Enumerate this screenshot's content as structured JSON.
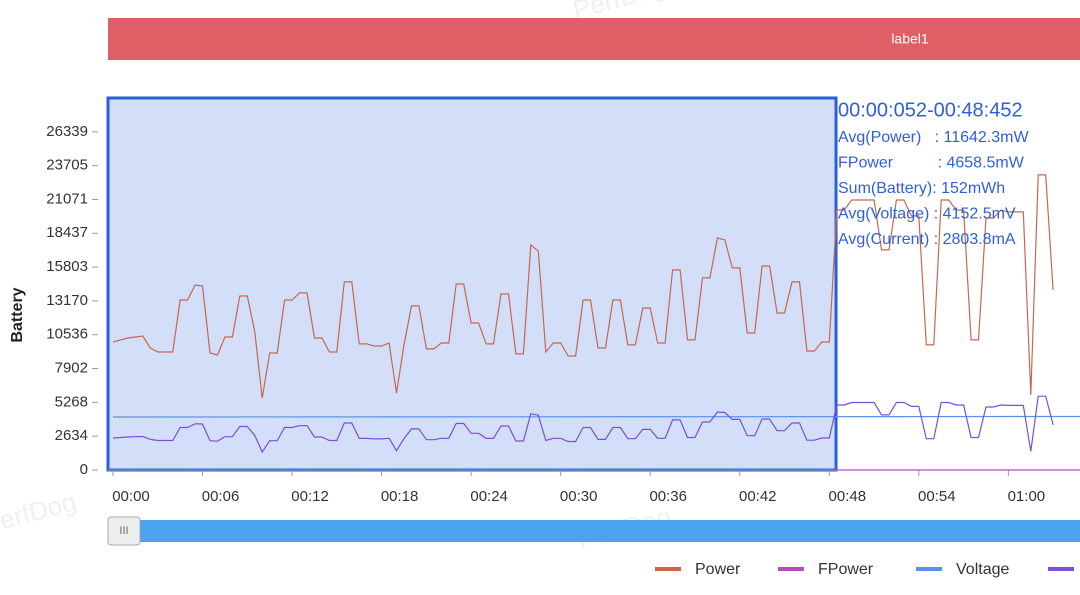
{
  "chart_data": {
    "type": "line",
    "header": "label1",
    "y_label": "Battery",
    "watermarks": [
      "PerfDog",
      "PerfDog",
      "PerfDog"
    ],
    "x": [
      0,
      0.5,
      1,
      1.5,
      2,
      2.5,
      3,
      3.5,
      4,
      4.5,
      5,
      5.5,
      6,
      6.5,
      7,
      7.5,
      8,
      8.5,
      9,
      9.5,
      10,
      10.5,
      11,
      11.5,
      12,
      12.5,
      13,
      13.5,
      14,
      14.5,
      15,
      15.5,
      16,
      16.5,
      17,
      17.5,
      18,
      18.5,
      19,
      19.5,
      20,
      20.5,
      21,
      21.5,
      22,
      22.5,
      23,
      23.5,
      24,
      24.5,
      25,
      25.5,
      26,
      26.5,
      27,
      27.5,
      28,
      28.5,
      29,
      29.5,
      30,
      30.5,
      31,
      31.5,
      32,
      32.5,
      33,
      33.5,
      34,
      34.5,
      35,
      35.5,
      36,
      36.5,
      37,
      37.5,
      38,
      38.5,
      39,
      39.5,
      40,
      40.5,
      41,
      41.5,
      42,
      42.5,
      43,
      43.5,
      44,
      44.5,
      45,
      45.5,
      46,
      46.5,
      47,
      47.5,
      48,
      48.5,
      49,
      49.5,
      50,
      50.5,
      51,
      51.5,
      52,
      52.5,
      53,
      53.5,
      54,
      54.5,
      55,
      55.5,
      56,
      56.5,
      57,
      57.5,
      58,
      58.5,
      59,
      59.5,
      60,
      60.5,
      61,
      61.5,
      62,
      62.5,
      63
    ],
    "series": [
      {
        "name": "Power",
        "color": "#c8674f",
        "values": [
          9970,
          10130,
          10280,
          10360,
          10440,
          9500,
          9190,
          9190,
          9190,
          13240,
          13240,
          14410,
          14330,
          9110,
          8960,
          10360,
          10360,
          13550,
          13550,
          10750,
          5610,
          9110,
          9110,
          13240,
          13240,
          13790,
          13790,
          10280,
          10280,
          9190,
          9190,
          14650,
          14650,
          9820,
          9820,
          9660,
          9660,
          9890,
          6000,
          9740,
          12780,
          12780,
          9430,
          9430,
          9890,
          9890,
          14490,
          14490,
          11450,
          11450,
          9820,
          9820,
          13710,
          13710,
          9040,
          9040,
          17530,
          17060,
          9190,
          9890,
          9890,
          8880,
          8880,
          13240,
          13240,
          9500,
          9500,
          13240,
          13240,
          9740,
          9740,
          12620,
          12620,
          9890,
          9890,
          15580,
          15580,
          10130,
          10130,
          14960,
          14960,
          18070,
          17920,
          15740,
          15740,
          10670,
          10670,
          15890,
          15890,
          12230,
          12230,
          14650,
          14650,
          9270,
          9270,
          9970,
          9970,
          20250,
          20250,
          21030,
          21030,
          21030,
          21030,
          17140,
          17140,
          21030,
          21030,
          19790,
          19790,
          9740,
          9740,
          21030,
          21030,
          20250,
          20250,
          10130,
          10130,
          19630,
          19630,
          20250,
          20100,
          20100,
          20100,
          5840,
          22980,
          22980,
          14020
        ]
      },
      {
        "name": "FPower",
        "color": "#b44bbf",
        "x": [
          48.5,
          64.8
        ],
        "values": [
          0,
          0
        ]
      },
      {
        "name": "Voltage",
        "color": "#5b8fe8",
        "x": [
          0,
          64.8
        ],
        "values": [
          4130,
          4170
        ]
      },
      {
        "color": "#7b4fd6",
        "values": [
          2490,
          2530,
          2570,
          2590,
          2610,
          2380,
          2300,
          2300,
          2300,
          3310,
          3310,
          3600,
          3580,
          2280,
          2240,
          2590,
          2590,
          3390,
          3390,
          2690,
          1400,
          2280,
          2280,
          3310,
          3310,
          3450,
          3450,
          2570,
          2570,
          2300,
          2300,
          3660,
          3660,
          2460,
          2460,
          2420,
          2420,
          2470,
          1500,
          2440,
          3200,
          3200,
          2360,
          2360,
          2470,
          2470,
          3620,
          3620,
          2860,
          2860,
          2460,
          2460,
          3430,
          3430,
          2260,
          2260,
          4380,
          4270,
          2300,
          2470,
          2470,
          2220,
          2220,
          3310,
          3310,
          2380,
          2380,
          3310,
          3310,
          2440,
          2440,
          3160,
          3160,
          2470,
          2470,
          3900,
          3900,
          2530,
          2530,
          3740,
          3740,
          4520,
          4480,
          3940,
          3940,
          2670,
          2670,
          3970,
          3970,
          3060,
          3060,
          3660,
          3660,
          2320,
          2320,
          2490,
          2490,
          5060,
          5060,
          5260,
          5260,
          5260,
          5260,
          4290,
          4290,
          5260,
          5260,
          4950,
          4950,
          2440,
          2440,
          5260,
          5260,
          5060,
          5060,
          2530,
          2530,
          4910,
          4910,
          5060,
          5030,
          5030,
          5030,
          1460,
          5750,
          5750,
          3510
        ]
      }
    ],
    "xlim": [
      0,
      64.8
    ],
    "xticks": [
      {
        "value": 0,
        "label": "00:00"
      },
      {
        "value": 6,
        "label": "00:06"
      },
      {
        "value": 12,
        "label": "00:12"
      },
      {
        "value": 18,
        "label": "00:18"
      },
      {
        "value": 24,
        "label": "00:24"
      },
      {
        "value": 30,
        "label": "00:30"
      },
      {
        "value": 36,
        "label": "00:36"
      },
      {
        "value": 42,
        "label": "00:42"
      },
      {
        "value": 48,
        "label": "00:48"
      },
      {
        "value": 54,
        "label": "00:54"
      },
      {
        "value": 60,
        "label": "01:00"
      }
    ],
    "ylim": [
      0,
      28973
    ],
    "yticks": [
      0,
      2634,
      5268,
      7902,
      10536,
      13170,
      15803,
      18437,
      21071,
      23705,
      26339
    ],
    "selection": {
      "x_range": [
        0.052,
        48.452
      ],
      "label": "00:00:052-00:48:452",
      "stats": [
        "Avg(Power)   : 11642.3mW",
        "FPower          : 4658.5mW",
        "Sum(Battery): 152mWh",
        "Avg(Voltage) : 4152.5mV",
        "Avg(Current) : 2803.8mA"
      ]
    },
    "slider_handle": "III"
  }
}
